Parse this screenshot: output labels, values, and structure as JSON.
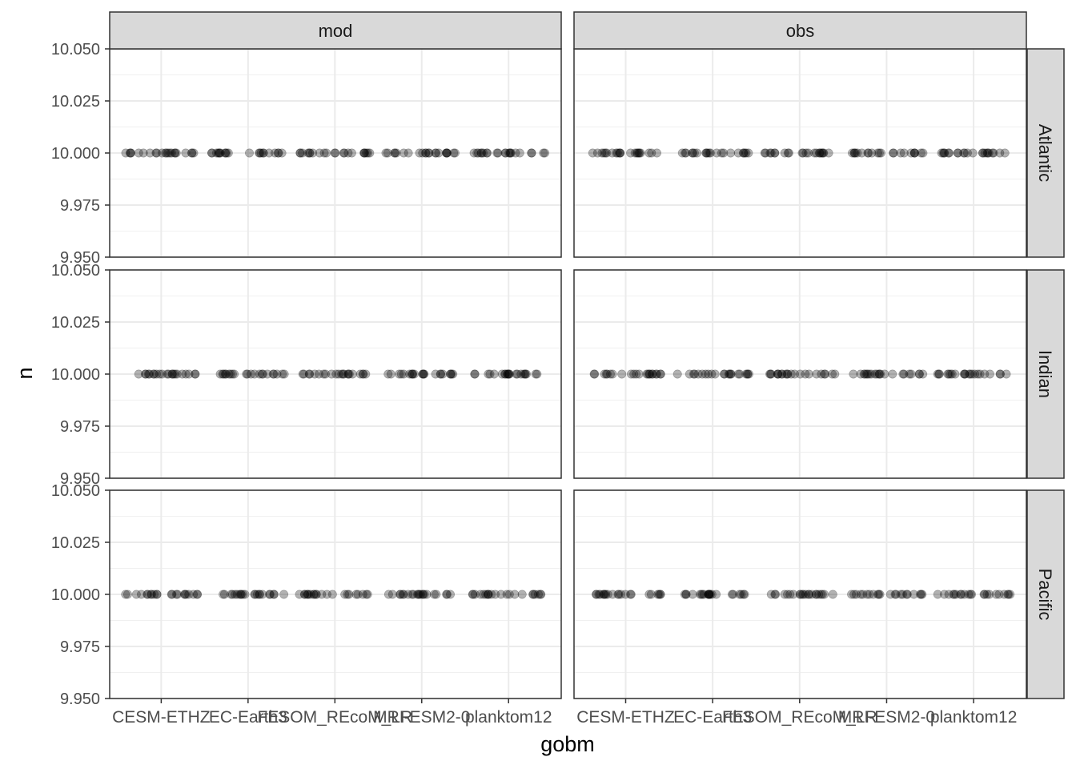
{
  "chart_data": {
    "type": "scatter",
    "xlabel": "gobm",
    "ylabel": "n",
    "facet_cols": [
      "mod",
      "obs"
    ],
    "facet_rows": [
      "Atlantic",
      "Indian",
      "Pacific"
    ],
    "categories": [
      "CESM-ETHZ",
      "EC-Earth3",
      "FESOM_REcoM_LR",
      "MRI-ESM2-0",
      "planktom12"
    ],
    "y_ticks": [
      "9.950",
      "9.975",
      "10.000",
      "10.025",
      "10.050"
    ],
    "ylim": [
      9.95,
      10.05
    ],
    "grid": true,
    "point_color": "#000000",
    "point_alpha": 0.3,
    "panels": [
      {
        "col": "mod",
        "row": "Atlantic",
        "points": [
          {
            "gobm": "CESM-ETHZ",
            "n": 10.0,
            "count": 22
          },
          {
            "gobm": "EC-Earth3",
            "n": 10.0,
            "count": 22
          },
          {
            "gobm": "FESOM_REcoM_LR",
            "n": 10.0,
            "count": 22
          },
          {
            "gobm": "MRI-ESM2-0",
            "n": 10.0,
            "count": 22
          },
          {
            "gobm": "planktom12",
            "n": 10.0,
            "count": 22
          }
        ]
      },
      {
        "col": "obs",
        "row": "Atlantic",
        "points": [
          {
            "gobm": "CESM-ETHZ",
            "n": 10.0,
            "count": 22
          },
          {
            "gobm": "EC-Earth3",
            "n": 10.0,
            "count": 22
          },
          {
            "gobm": "FESOM_REcoM_LR",
            "n": 10.0,
            "count": 22
          },
          {
            "gobm": "MRI-ESM2-0",
            "n": 10.0,
            "count": 22
          },
          {
            "gobm": "planktom12",
            "n": 10.0,
            "count": 22
          }
        ]
      },
      {
        "col": "mod",
        "row": "Indian",
        "points": [
          {
            "gobm": "CESM-ETHZ",
            "n": 10.0,
            "count": 22
          },
          {
            "gobm": "EC-Earth3",
            "n": 10.0,
            "count": 22
          },
          {
            "gobm": "FESOM_REcoM_LR",
            "n": 10.0,
            "count": 22
          },
          {
            "gobm": "MRI-ESM2-0",
            "n": 10.0,
            "count": 22
          },
          {
            "gobm": "planktom12",
            "n": 10.0,
            "count": 22
          }
        ]
      },
      {
        "col": "obs",
        "row": "Indian",
        "points": [
          {
            "gobm": "CESM-ETHZ",
            "n": 10.0,
            "count": 22
          },
          {
            "gobm": "EC-Earth3",
            "n": 10.0,
            "count": 22
          },
          {
            "gobm": "FESOM_REcoM_LR",
            "n": 10.0,
            "count": 22
          },
          {
            "gobm": "MRI-ESM2-0",
            "n": 10.0,
            "count": 22
          },
          {
            "gobm": "planktom12",
            "n": 10.0,
            "count": 22
          }
        ]
      },
      {
        "col": "mod",
        "row": "Pacific",
        "points": [
          {
            "gobm": "CESM-ETHZ",
            "n": 10.0,
            "count": 22
          },
          {
            "gobm": "EC-Earth3",
            "n": 10.0,
            "count": 22
          },
          {
            "gobm": "FESOM_REcoM_LR",
            "n": 10.0,
            "count": 22
          },
          {
            "gobm": "MRI-ESM2-0",
            "n": 10.0,
            "count": 22
          },
          {
            "gobm": "planktom12",
            "n": 10.0,
            "count": 22
          }
        ]
      },
      {
        "col": "obs",
        "row": "Pacific",
        "points": [
          {
            "gobm": "CESM-ETHZ",
            "n": 10.0,
            "count": 22
          },
          {
            "gobm": "EC-Earth3",
            "n": 10.0,
            "count": 22
          },
          {
            "gobm": "FESOM_REcoM_LR",
            "n": 10.0,
            "count": 22
          },
          {
            "gobm": "MRI-ESM2-0",
            "n": 10.0,
            "count": 22
          },
          {
            "gobm": "planktom12",
            "n": 10.0,
            "count": 22
          }
        ]
      }
    ]
  }
}
